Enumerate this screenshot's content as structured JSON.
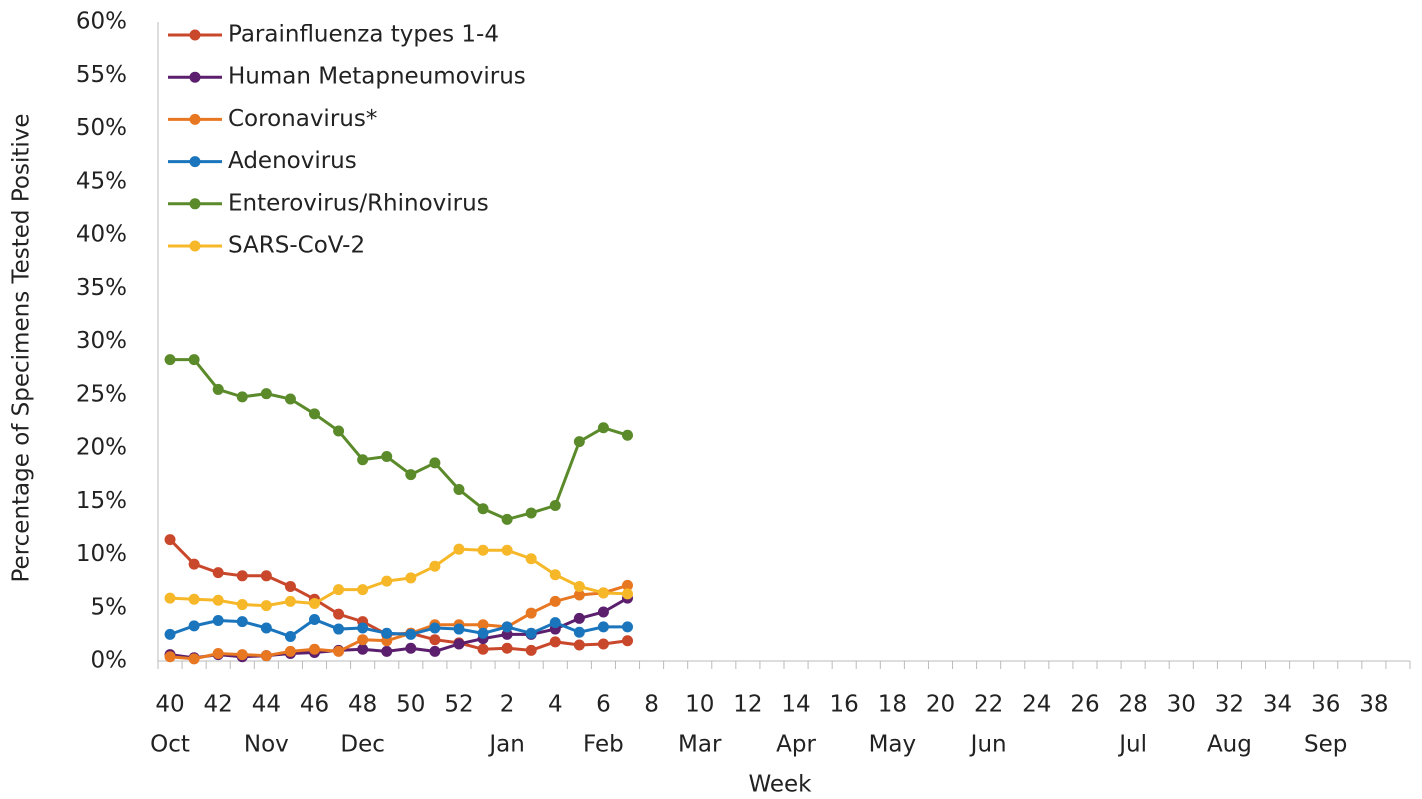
{
  "chart_data": {
    "type": "line",
    "x_label": "Week",
    "y_label": "Percentage of Specimens Tested Positive",
    "categories": [
      "40",
      null,
      "42",
      null,
      "44",
      null,
      "46",
      null,
      "48",
      null,
      "50",
      null,
      "52",
      null,
      "2",
      null,
      "4",
      null,
      "6",
      null,
      "8",
      null,
      "10",
      null,
      "12",
      null,
      "14",
      null,
      "16",
      null,
      "18",
      null,
      "20",
      null,
      "22",
      null,
      "24",
      null,
      "26",
      null,
      "28",
      null,
      "30",
      null,
      "32",
      null,
      "34",
      null,
      "36",
      null,
      "38",
      null
    ],
    "category_groups": [
      "Oct",
      null,
      null,
      null,
      "Nov",
      null,
      null,
      null,
      "Dec",
      null,
      null,
      null,
      null,
      null,
      "Jan",
      null,
      null,
      null,
      "Feb",
      null,
      null,
      null,
      "Mar",
      null,
      null,
      null,
      "Apr",
      null,
      null,
      null,
      "May",
      null,
      null,
      null,
      "Jun",
      null,
      null,
      null,
      null,
      null,
      "Jul",
      null,
      null,
      null,
      "Aug",
      null,
      null,
      null,
      "Sep",
      null,
      null,
      null
    ],
    "series": [
      {
        "name": "Parainfluenza types 1-4",
        "color": "#c9472b",
        "values": [
          11.4,
          9.1,
          8.3,
          8.0,
          8.0,
          7.0,
          5.8,
          4.4,
          3.7,
          2.5,
          2.6,
          2.0,
          1.7,
          1.1,
          1.2,
          1.0,
          1.8,
          1.5,
          1.6,
          1.9,
          null,
          null,
          null,
          null,
          null,
          null,
          null,
          null,
          null,
          null,
          null,
          null,
          null,
          null,
          null,
          null,
          null,
          null,
          null,
          null,
          null,
          null,
          null,
          null,
          null,
          null,
          null,
          null,
          null,
          null,
          null,
          null
        ]
      },
      {
        "name": "Human Metapneumovirus",
        "color": "#5b1f6e",
        "values": [
          0.6,
          0.3,
          0.6,
          0.4,
          0.5,
          0.7,
          0.8,
          1.0,
          1.1,
          0.9,
          1.2,
          0.9,
          1.6,
          2.1,
          2.5,
          2.5,
          3.0,
          4.0,
          4.6,
          5.9,
          null,
          null,
          null,
          null,
          null,
          null,
          null,
          null,
          null,
          null,
          null,
          null,
          null,
          null,
          null,
          null,
          null,
          null,
          null,
          null,
          null,
          null,
          null,
          null,
          null,
          null,
          null,
          null,
          null,
          null,
          null,
          null
        ]
      },
      {
        "name": "Coronavirus*",
        "color": "#e87722",
        "values": [
          0.4,
          0.2,
          0.7,
          0.6,
          0.5,
          0.9,
          1.1,
          0.9,
          2.0,
          1.9,
          2.6,
          3.4,
          3.4,
          3.4,
          3.2,
          4.5,
          5.6,
          6.2,
          6.4,
          7.1,
          null,
          null,
          null,
          null,
          null,
          null,
          null,
          null,
          null,
          null,
          null,
          null,
          null,
          null,
          null,
          null,
          null,
          null,
          null,
          null,
          null,
          null,
          null,
          null,
          null,
          null,
          null,
          null,
          null,
          null,
          null,
          null
        ]
      },
      {
        "name": "Adenovirus",
        "color": "#1a75bc",
        "values": [
          2.5,
          3.3,
          3.8,
          3.7,
          3.1,
          2.3,
          3.9,
          3.0,
          3.1,
          2.6,
          2.5,
          3.1,
          3.0,
          2.6,
          3.2,
          2.6,
          3.6,
          2.7,
          3.2,
          3.2,
          null,
          null,
          null,
          null,
          null,
          null,
          null,
          null,
          null,
          null,
          null,
          null,
          null,
          null,
          null,
          null,
          null,
          null,
          null,
          null,
          null,
          null,
          null,
          null,
          null,
          null,
          null,
          null,
          null,
          null,
          null,
          null
        ]
      },
      {
        "name": "Enterovirus/Rhinovirus",
        "color": "#5a8a2a",
        "values": [
          28.3,
          28.3,
          25.5,
          24.8,
          25.1,
          24.6,
          23.2,
          21.6,
          18.9,
          19.2,
          17.5,
          18.6,
          16.1,
          14.3,
          13.3,
          13.9,
          14.6,
          20.6,
          21.9,
          21.2,
          null,
          null,
          null,
          null,
          null,
          null,
          null,
          null,
          null,
          null,
          null,
          null,
          null,
          null,
          null,
          null,
          null,
          null,
          null,
          null,
          null,
          null,
          null,
          null,
          null,
          null,
          null,
          null,
          null,
          null,
          null,
          null
        ]
      },
      {
        "name": "SARS-CoV-2",
        "color": "#f6b828",
        "values": [
          5.9,
          5.8,
          5.7,
          5.3,
          5.2,
          5.6,
          5.4,
          6.7,
          6.7,
          7.5,
          7.8,
          8.9,
          10.5,
          10.4,
          10.4,
          9.6,
          8.1,
          7.0,
          6.4,
          6.3,
          null,
          null,
          null,
          null,
          null,
          null,
          null,
          null,
          null,
          null,
          null,
          null,
          null,
          null,
          null,
          null,
          null,
          null,
          null,
          null,
          null,
          null,
          null,
          null,
          null,
          null,
          null,
          null,
          null,
          null,
          null,
          null
        ]
      }
    ],
    "ylim": [
      0,
      60
    ],
    "yticks": [
      {
        "value": 0,
        "label": "0%"
      },
      {
        "value": 5,
        "label": "5%"
      },
      {
        "value": 10,
        "label": "10%"
      },
      {
        "value": 15,
        "label": "15%"
      },
      {
        "value": 20,
        "label": "20%"
      },
      {
        "value": 25,
        "label": "25%"
      },
      {
        "value": 30,
        "label": "30%"
      },
      {
        "value": 35,
        "label": "35%"
      },
      {
        "value": 40,
        "label": "40%"
      },
      {
        "value": 45,
        "label": "45%"
      },
      {
        "value": 50,
        "label": "50%"
      },
      {
        "value": 55,
        "label": "55%"
      },
      {
        "value": 60,
        "label": "60%"
      }
    ],
    "grid": false,
    "legend": "upper left"
  }
}
